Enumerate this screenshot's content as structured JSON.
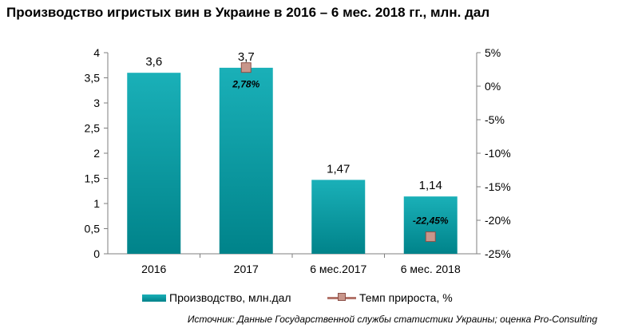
{
  "title": "Производство игристых вин в Украине в 2016 – 6 мес. 2018 гг., млн. дал",
  "source": "Источник: Данные Государственной службы статистики Украины; оценка Pro-Consulting",
  "legend": {
    "bar_label": "Производство, млн.дал",
    "line_label": "Темп прироста, %"
  },
  "colors": {
    "bar_top": "#1ab0b8",
    "bar_bottom": "#00838a",
    "marker_fill": "#c8968b",
    "marker_border": "#8c5048",
    "axis": "#7f7f7f"
  },
  "chart_data": {
    "type": "bar",
    "categories": [
      "2016",
      "2017",
      "6 мес.2017",
      "6 мес. 2018"
    ],
    "series": [
      {
        "name": "Производство, млн.дал",
        "type": "bar",
        "axis": "left",
        "values": [
          3.6,
          3.7,
          1.47,
          1.14
        ],
        "data_labels": [
          "3,6",
          "3,7",
          "1,47",
          "1,14"
        ]
      },
      {
        "name": "Темп прироста, %",
        "type": "line-markers",
        "axis": "right",
        "values": [
          null,
          2.78,
          null,
          -22.45
        ],
        "data_labels": [
          "",
          "2,78%",
          "",
          "-22,45%"
        ]
      }
    ],
    "y_left": {
      "min": 0,
      "max": 4,
      "ticks": [
        "0",
        "0,5",
        "1",
        "1,5",
        "2",
        "2,5",
        "3",
        "3,5",
        "4"
      ]
    },
    "y_right": {
      "min": -25,
      "max": 5,
      "ticks": [
        "-25%",
        "-20%",
        "-15%",
        "-10%",
        "-5%",
        "0%",
        "5%"
      ]
    },
    "grid": false,
    "legend_position": "bottom"
  }
}
